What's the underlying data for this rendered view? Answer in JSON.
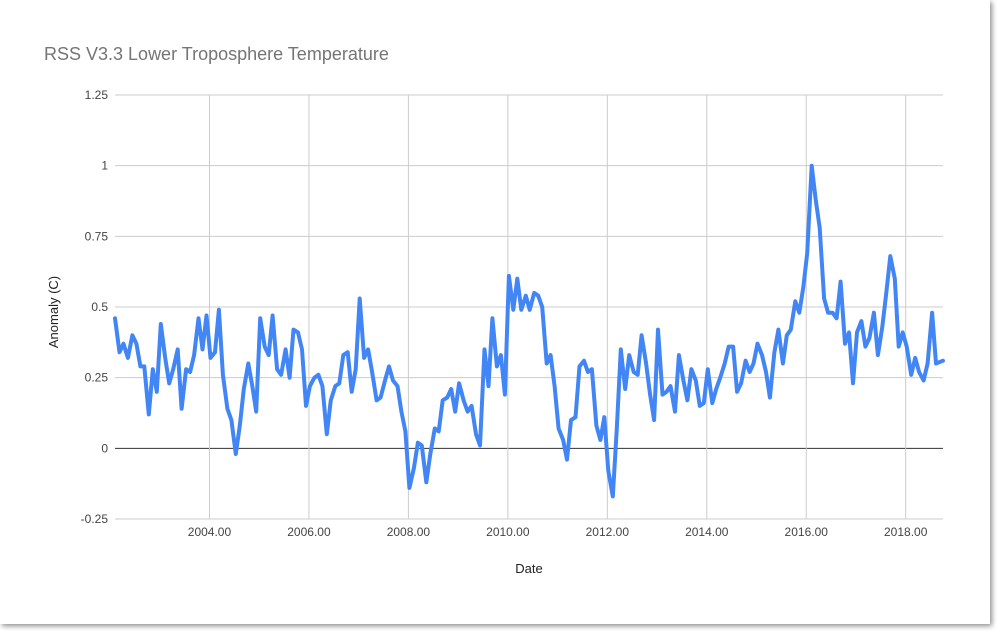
{
  "chart_data": {
    "type": "line",
    "title": "RSS V3.3 Lower Troposphere Temperature",
    "xlabel": "Date",
    "ylabel": "Anomaly (C)",
    "xlim": [
      2002.1,
      2018.75
    ],
    "ylim": [
      -0.25,
      1.25
    ],
    "x_ticks": [
      "2004.00",
      "2006.00",
      "2008.00",
      "2010.00",
      "2012.00",
      "2014.00",
      "2016.00",
      "2018.00"
    ],
    "y_ticks": [
      "1.25",
      "1",
      "0.75",
      "0.5",
      "0.25",
      "0",
      "-0.25"
    ],
    "grid": true,
    "legend": "none",
    "colors": {
      "series": "#4285f4",
      "grid": "#cccccc",
      "zero_line": "#333333"
    },
    "series": [
      {
        "name": "",
        "x": [
          2002.1,
          2002.19,
          2002.27,
          2002.36,
          2002.45,
          2002.53,
          2002.61,
          2002.69,
          2002.78,
          2002.86,
          2002.94,
          2003.02,
          2003.11,
          2003.19,
          2003.27,
          2003.36,
          2003.44,
          2003.53,
          2003.61,
          2003.69,
          2003.78,
          2003.86,
          2003.94,
          2004.02,
          2004.11,
          2004.19,
          2004.27,
          2004.36,
          2004.44,
          2004.53,
          2004.61,
          2004.69,
          2004.78,
          2004.86,
          2004.94,
          2005.02,
          2005.11,
          2005.19,
          2005.27,
          2005.36,
          2005.44,
          2005.53,
          2005.61,
          2005.69,
          2005.78,
          2005.86,
          2005.94,
          2006.02,
          2006.11,
          2006.19,
          2006.27,
          2006.36,
          2006.44,
          2006.53,
          2006.61,
          2006.69,
          2006.78,
          2006.86,
          2006.94,
          2007.02,
          2007.11,
          2007.19,
          2007.27,
          2007.36,
          2007.44,
          2007.53,
          2007.61,
          2007.69,
          2007.78,
          2007.86,
          2007.94,
          2008.02,
          2008.11,
          2008.19,
          2008.27,
          2008.36,
          2008.44,
          2008.53,
          2008.61,
          2008.69,
          2008.78,
          2008.86,
          2008.94,
          2009.02,
          2009.11,
          2009.19,
          2009.27,
          2009.36,
          2009.44,
          2009.53,
          2009.61,
          2009.69,
          2009.78,
          2009.86,
          2009.94,
          2010.02,
          2010.11,
          2010.19,
          2010.27,
          2010.36,
          2010.44,
          2010.53,
          2010.61,
          2010.69,
          2010.78,
          2010.86,
          2010.94,
          2011.02,
          2011.11,
          2011.19,
          2011.27,
          2011.36,
          2011.44,
          2011.53,
          2011.61,
          2011.69,
          2011.78,
          2011.86,
          2011.94,
          2012.02,
          2012.11,
          2012.19,
          2012.27,
          2012.36,
          2012.44,
          2012.53,
          2012.61,
          2012.69,
          2012.78,
          2012.86,
          2012.94,
          2013.02,
          2013.11,
          2013.19,
          2013.27,
          2013.36,
          2013.44,
          2013.53,
          2013.61,
          2013.69,
          2013.78,
          2013.86,
          2013.94,
          2014.02,
          2014.11,
          2014.19,
          2014.27,
          2014.36,
          2014.44,
          2014.53,
          2014.61,
          2014.69,
          2014.78,
          2014.86,
          2014.94,
          2015.02,
          2015.11,
          2015.19,
          2015.27,
          2015.36,
          2015.44,
          2015.53,
          2015.61,
          2015.69,
          2015.78,
          2015.86,
          2015.94,
          2016.02,
          2016.11,
          2016.19,
          2016.27,
          2016.36,
          2016.44,
          2016.53,
          2016.61,
          2016.69,
          2016.78,
          2016.86,
          2016.94,
          2017.02,
          2017.11,
          2017.19,
          2017.27,
          2017.36,
          2017.44,
          2017.53,
          2017.61,
          2017.69,
          2017.78,
          2017.86,
          2017.94,
          2018.02,
          2018.11,
          2018.19,
          2018.27,
          2018.36,
          2018.44,
          2018.53,
          2018.61,
          2018.75
        ],
        "y": [
          0.46,
          0.34,
          0.37,
          0.32,
          0.4,
          0.37,
          0.29,
          0.29,
          0.12,
          0.28,
          0.2,
          0.44,
          0.32,
          0.23,
          0.28,
          0.35,
          0.14,
          0.28,
          0.27,
          0.33,
          0.46,
          0.35,
          0.47,
          0.32,
          0.34,
          0.49,
          0.26,
          0.14,
          0.1,
          -0.02,
          0.08,
          0.21,
          0.3,
          0.22,
          0.13,
          0.46,
          0.36,
          0.33,
          0.47,
          0.28,
          0.26,
          0.35,
          0.25,
          0.42,
          0.41,
          0.35,
          0.15,
          0.22,
          0.25,
          0.26,
          0.22,
          0.05,
          0.17,
          0.22,
          0.23,
          0.33,
          0.34,
          0.2,
          0.28,
          0.53,
          0.32,
          0.35,
          0.27,
          0.17,
          0.18,
          0.24,
          0.29,
          0.24,
          0.22,
          0.13,
          0.06,
          -0.14,
          -0.07,
          0.02,
          0.01,
          -0.12,
          -0.02,
          0.07,
          0.06,
          0.17,
          0.18,
          0.21,
          0.13,
          0.23,
          0.17,
          0.13,
          0.15,
          0.05,
          0.01,
          0.35,
          0.22,
          0.46,
          0.29,
          0.33,
          0.19,
          0.61,
          0.49,
          0.6,
          0.49,
          0.54,
          0.49,
          0.55,
          0.54,
          0.5,
          0.3,
          0.33,
          0.22,
          0.07,
          0.03,
          -0.04,
          0.1,
          0.11,
          0.29,
          0.31,
          0.27,
          0.28,
          0.08,
          0.03,
          0.11,
          -0.08,
          -0.17,
          0.07,
          0.35,
          0.21,
          0.33,
          0.27,
          0.26,
          0.4,
          0.3,
          0.19,
          0.1,
          0.42,
          0.19,
          0.2,
          0.22,
          0.13,
          0.33,
          0.24,
          0.17,
          0.28,
          0.24,
          0.15,
          0.16,
          0.28,
          0.16,
          0.21,
          0.25,
          0.3,
          0.36,
          0.36,
          0.2,
          0.23,
          0.31,
          0.27,
          0.3,
          0.37,
          0.33,
          0.27,
          0.18,
          0.34,
          0.42,
          0.3,
          0.4,
          0.42,
          0.52,
          0.48,
          0.57,
          0.69,
          1.0,
          0.88,
          0.78,
          0.53,
          0.48,
          0.48,
          0.46,
          0.59,
          0.37,
          0.41,
          0.23,
          0.41,
          0.45,
          0.36,
          0.39,
          0.48,
          0.33,
          0.43,
          0.55,
          0.68,
          0.6,
          0.36,
          0.41,
          0.36,
          0.26,
          0.32,
          0.27,
          0.24,
          0.3,
          0.48,
          0.3,
          0.31
        ]
      }
    ]
  }
}
